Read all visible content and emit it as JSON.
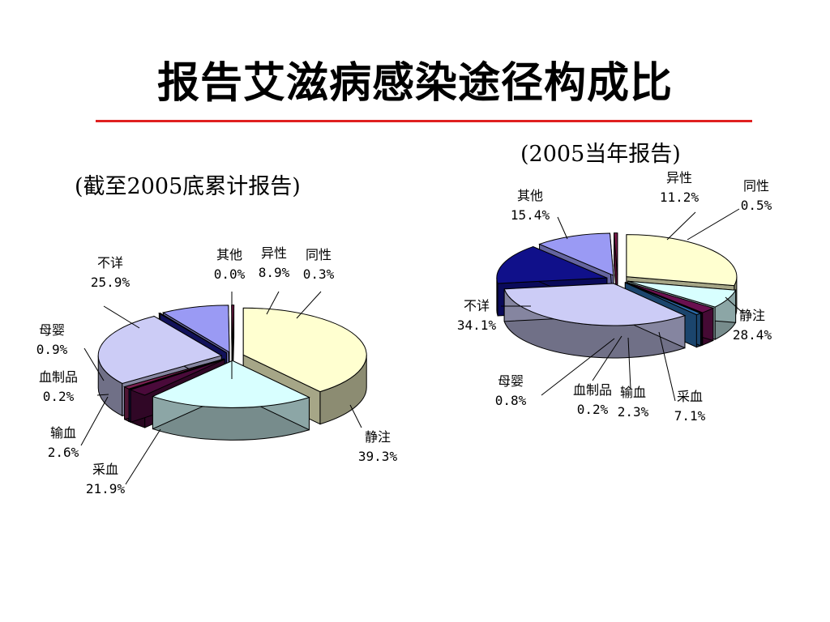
{
  "title": "报告艾滋病感染途径构成比",
  "chart_data": [
    {
      "type": "pie",
      "title": "(截至2005底累计报告)",
      "slices": [
        {
          "label": "静注",
          "value": 39.3,
          "value_text": "39.3%",
          "color": "#ffffd0"
        },
        {
          "label": "采血",
          "value": 21.9,
          "value_text": "21.9%",
          "color": "#d8ffff"
        },
        {
          "label": "输血",
          "value": 2.6,
          "value_text": "2.6%",
          "color": "#4a0a3a"
        },
        {
          "label": "血制品",
          "value": 0.2,
          "value_text": "0.2%",
          "color": "#1c1c6a"
        },
        {
          "label": "母婴",
          "value": 0.9,
          "value_text": "0.9%",
          "color": "#7a2050"
        },
        {
          "label": "不详",
          "value": 25.9,
          "value_text": "25.9%",
          "color": "#ccccf6"
        },
        {
          "label": "其他",
          "value": 0.0,
          "value_text": "0.0%",
          "color": "#1a1a8a"
        },
        {
          "label": "异性",
          "value": 8.9,
          "value_text": "8.9%",
          "color": "#9a9af4"
        },
        {
          "label": "同性",
          "value": 0.3,
          "value_text": "0.3%",
          "color": "#7a1a4a"
        }
      ]
    },
    {
      "type": "pie",
      "title": "(2005当年报告)",
      "slices": [
        {
          "label": "静注",
          "value": 28.4,
          "value_text": "28.4%",
          "color": "#ffffd0"
        },
        {
          "label": "采血",
          "value": 7.1,
          "value_text": "7.1%",
          "color": "#d8ffff"
        },
        {
          "label": "输血",
          "value": 2.3,
          "value_text": "2.3%",
          "color": "#6a1050"
        },
        {
          "label": "血制品",
          "value": 0.2,
          "value_text": "0.2%",
          "color": "#20206a"
        },
        {
          "label": "母婴",
          "value": 0.8,
          "value_text": "0.8%",
          "color": "#2a6aa8"
        },
        {
          "label": "不详",
          "value": 34.1,
          "value_text": "34.1%",
          "color": "#ccccf6"
        },
        {
          "label": "其他",
          "value": 15.4,
          "value_text": "15.4%",
          "color": "#10108a"
        },
        {
          "label": "异性",
          "value": 11.2,
          "value_text": "11.2%",
          "color": "#9a9af4"
        },
        {
          "label": "同性",
          "value": 0.5,
          "value_text": "0.5%",
          "color": "#7a1a4a"
        }
      ]
    }
  ]
}
